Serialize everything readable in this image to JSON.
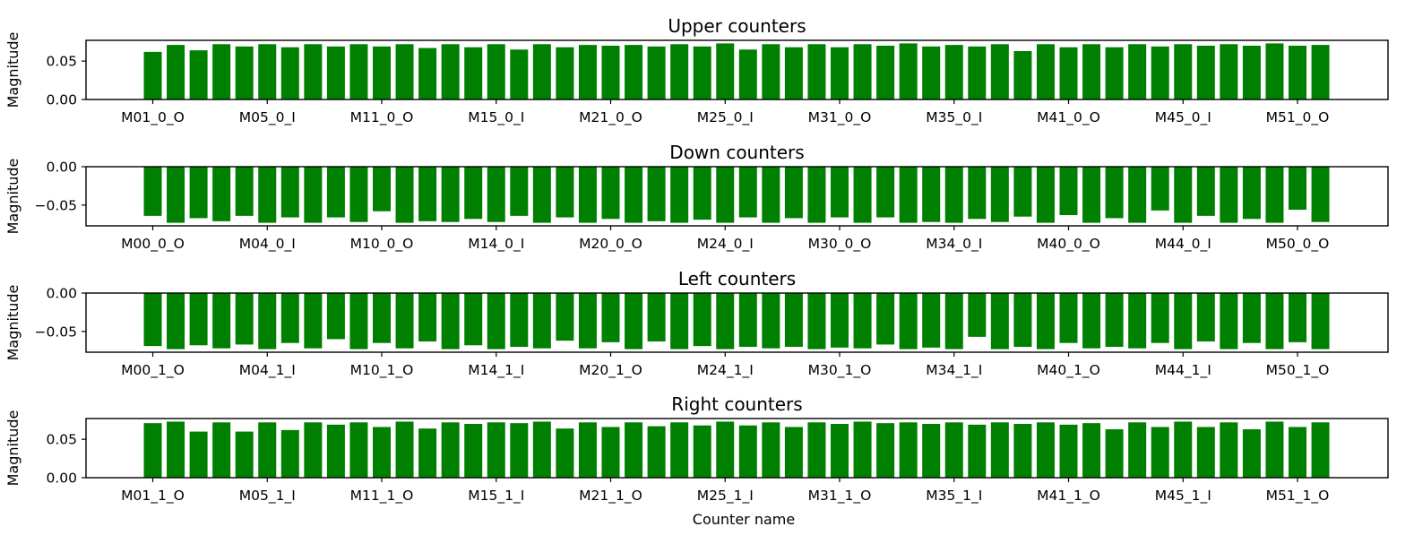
{
  "colors": {
    "bar": "#008000"
  },
  "xlabel": "Counter name",
  "chart_data": [
    {
      "type": "bar",
      "title": "Upper counters",
      "ylabel": "Magnitude",
      "ylim": [
        0,
        0.077
      ],
      "yticks": [
        "0.00",
        "0.05"
      ],
      "ytick_values": [
        0,
        0.05
      ],
      "xtick_labels": [
        "M01_0_O",
        "M05_0_I",
        "M11_0_O",
        "M15_0_I",
        "M21_0_O",
        "M25_0_I",
        "M31_0_O",
        "M35_0_I",
        "M41_0_O",
        "M45_0_I",
        "M51_0_O"
      ],
      "values": [
        0.062,
        0.071,
        0.064,
        0.072,
        0.069,
        0.072,
        0.068,
        0.072,
        0.069,
        0.072,
        0.069,
        0.072,
        0.067,
        0.072,
        0.068,
        0.072,
        0.065,
        0.072,
        0.068,
        0.071,
        0.07,
        0.071,
        0.069,
        0.072,
        0.069,
        0.073,
        0.065,
        0.072,
        0.068,
        0.072,
        0.068,
        0.072,
        0.07,
        0.073,
        0.069,
        0.071,
        0.069,
        0.072,
        0.063,
        0.072,
        0.068,
        0.072,
        0.068,
        0.072,
        0.069,
        0.072,
        0.07,
        0.072,
        0.07,
        0.073,
        0.07,
        0.071
      ]
    },
    {
      "type": "bar",
      "title": "Down counters",
      "ylabel": "Magnitude",
      "ylim": [
        -0.077,
        0
      ],
      "yticks": [
        "0.00",
        "−0.05"
      ],
      "ytick_values": [
        0,
        -0.05
      ],
      "xtick_labels": [
        "M00_0_O",
        "M04_0_I",
        "M10_0_O",
        "M14_0_I",
        "M20_0_O",
        "M24_0_I",
        "M30_0_O",
        "M34_0_I",
        "M40_0_O",
        "M44_0_I",
        "M50_0_O"
      ],
      "values": [
        -0.064,
        -0.073,
        -0.067,
        -0.071,
        -0.064,
        -0.073,
        -0.066,
        -0.073,
        -0.066,
        -0.072,
        -0.058,
        -0.073,
        -0.071,
        -0.072,
        -0.068,
        -0.072,
        -0.064,
        -0.073,
        -0.066,
        -0.073,
        -0.068,
        -0.073,
        -0.071,
        -0.073,
        -0.069,
        -0.073,
        -0.066,
        -0.073,
        -0.067,
        -0.073,
        -0.066,
        -0.073,
        -0.066,
        -0.073,
        -0.072,
        -0.073,
        -0.068,
        -0.072,
        -0.065,
        -0.073,
        -0.063,
        -0.073,
        -0.067,
        -0.073,
        -0.057,
        -0.073,
        -0.064,
        -0.073,
        -0.068,
        -0.073,
        -0.056,
        -0.072
      ]
    },
    {
      "type": "bar",
      "title": "Left counters",
      "ylabel": "Magnitude",
      "ylim": [
        -0.077,
        0
      ],
      "yticks": [
        "0.00",
        "−0.05"
      ],
      "ytick_values": [
        0,
        -0.05
      ],
      "xtick_labels": [
        "M00_1_O",
        "M04_1_I",
        "M10_1_O",
        "M14_1_I",
        "M20_1_O",
        "M24_1_I",
        "M30_1_O",
        "M34_1_I",
        "M40_1_O",
        "M44_1_I",
        "M50_1_O"
      ],
      "values": [
        -0.069,
        -0.073,
        -0.068,
        -0.072,
        -0.067,
        -0.073,
        -0.065,
        -0.072,
        -0.06,
        -0.073,
        -0.065,
        -0.072,
        -0.063,
        -0.073,
        -0.068,
        -0.073,
        -0.07,
        -0.072,
        -0.062,
        -0.072,
        -0.064,
        -0.073,
        -0.063,
        -0.073,
        -0.069,
        -0.073,
        -0.07,
        -0.072,
        -0.07,
        -0.073,
        -0.071,
        -0.072,
        -0.067,
        -0.073,
        -0.071,
        -0.073,
        -0.057,
        -0.073,
        -0.07,
        -0.073,
        -0.065,
        -0.072,
        -0.07,
        -0.072,
        -0.065,
        -0.073,
        -0.063,
        -0.073,
        -0.065,
        -0.073,
        -0.064,
        -0.073
      ]
    },
    {
      "type": "bar",
      "title": "Right counters",
      "ylabel": "Magnitude",
      "ylim": [
        0,
        0.077
      ],
      "yticks": [
        "0.00",
        "0.05"
      ],
      "ytick_values": [
        0,
        0.05
      ],
      "xtick_labels": [
        "M01_1_O",
        "M05_1_I",
        "M11_1_O",
        "M15_1_I",
        "M21_1_O",
        "M25_1_I",
        "M31_1_O",
        "M35_1_I",
        "M41_1_O",
        "M45_1_I",
        "M51_1_O"
      ],
      "values": [
        0.071,
        0.073,
        0.06,
        0.072,
        0.06,
        0.072,
        0.062,
        0.072,
        0.069,
        0.072,
        0.066,
        0.073,
        0.064,
        0.072,
        0.07,
        0.072,
        0.071,
        0.073,
        0.064,
        0.072,
        0.066,
        0.072,
        0.067,
        0.072,
        0.068,
        0.073,
        0.068,
        0.072,
        0.066,
        0.072,
        0.07,
        0.073,
        0.071,
        0.072,
        0.07,
        0.072,
        0.069,
        0.072,
        0.07,
        0.072,
        0.069,
        0.071,
        0.063,
        0.072,
        0.066,
        0.073,
        0.066,
        0.072,
        0.063,
        0.073,
        0.066,
        0.072
      ]
    }
  ]
}
